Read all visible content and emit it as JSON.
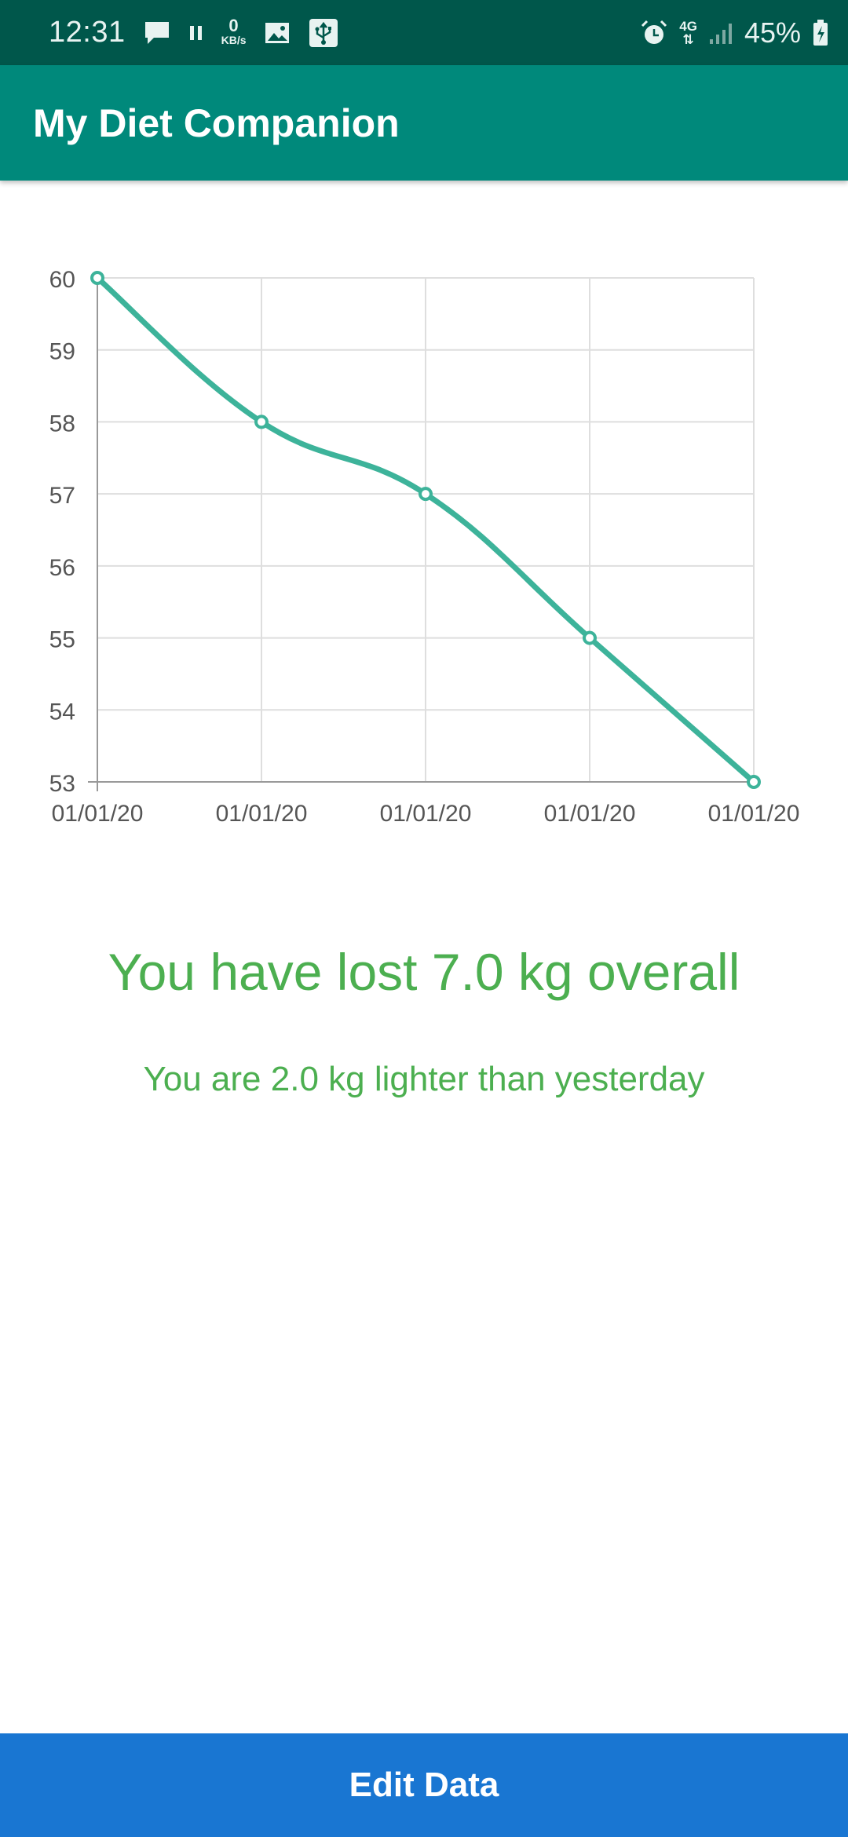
{
  "status_bar": {
    "time": "12:31",
    "net_speed_value": "0",
    "net_speed_unit": "KB/s",
    "network_type": "4G",
    "battery": "45%",
    "icons": [
      "message-icon",
      "pause-icon",
      "image-icon",
      "usb-icon",
      "alarm-icon",
      "data-arrows-icon",
      "signal-icon",
      "battery-charging-icon"
    ]
  },
  "app_bar": {
    "title": "My Diet Companion"
  },
  "chart_data": {
    "type": "line",
    "x": [
      "01/01/20",
      "01/01/20",
      "01/01/20",
      "01/01/20",
      "01/01/20"
    ],
    "series": [
      {
        "values": [
          60,
          58,
          57,
          55,
          53
        ]
      }
    ],
    "ylim": [
      53,
      60
    ],
    "yticks": [
      "53",
      "54",
      "55",
      "56",
      "57",
      "58",
      "59",
      "60"
    ],
    "grid": true,
    "line_color": "#3db39a",
    "smooth": true
  },
  "summary": {
    "overall": "You have lost 7.0 kg overall",
    "daily": "You are 2.0 kg lighter than yesterday"
  },
  "colors": {
    "status_bar": "#00574b",
    "app_bar": "#00897b",
    "summary_text": "#4caf50",
    "button": "#1976d2"
  },
  "button": {
    "label": "Edit Data"
  }
}
